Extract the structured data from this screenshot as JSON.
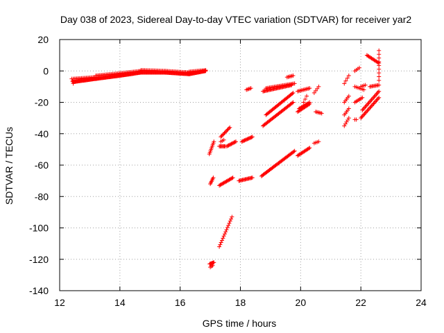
{
  "chart_data": {
    "type": "scatter",
    "title": "Day 038 of 2023, Sidereal Day-to-day VTEC variation (SDTVAR) for receiver yar2",
    "xlabel": "GPS time / hours",
    "ylabel": "SDTVAR / TECUs",
    "xlim": [
      12,
      24
    ],
    "ylim": [
      -140,
      20
    ],
    "xticks": [
      12,
      14,
      16,
      18,
      20,
      22,
      24
    ],
    "yticks": [
      20,
      0,
      -20,
      -40,
      -60,
      -80,
      -100,
      -120,
      -140
    ],
    "grid": true,
    "marker": "+",
    "color": "#ff0000",
    "segments": [
      {
        "x0": 12.4,
        "y0": -5,
        "x1": 12.45,
        "y1": -8,
        "step": 0.02
      },
      {
        "x0": 12.45,
        "y0": -7,
        "x1": 13.2,
        "y1": -5,
        "step": 0.02
      },
      {
        "x0": 12.45,
        "y0": -5,
        "x1": 13.2,
        "y1": -4,
        "step": 0.04
      },
      {
        "x0": 13.2,
        "y0": -5,
        "x1": 14.0,
        "y1": -3,
        "step": 0.02
      },
      {
        "x0": 13.2,
        "y0": -3,
        "x1": 14.0,
        "y1": -1.5,
        "step": 0.04
      },
      {
        "x0": 14.0,
        "y0": -3,
        "x1": 14.7,
        "y1": -1,
        "step": 0.02
      },
      {
        "x0": 14.0,
        "y0": -1.5,
        "x1": 14.7,
        "y1": 0,
        "step": 0.04
      },
      {
        "x0": 14.7,
        "y0": -1,
        "x1": 15.5,
        "y1": -1,
        "step": 0.02
      },
      {
        "x0": 14.7,
        "y0": 0.5,
        "x1": 15.5,
        "y1": 0,
        "step": 0.04
      },
      {
        "x0": 15.5,
        "y0": -1,
        "x1": 16.3,
        "y1": -2,
        "step": 0.02
      },
      {
        "x0": 15.5,
        "y0": 0,
        "x1": 16.3,
        "y1": -1,
        "step": 0.04
      },
      {
        "x0": 16.3,
        "y0": -2,
        "x1": 16.85,
        "y1": 0,
        "step": 0.02
      },
      {
        "x0": 16.3,
        "y0": -0.5,
        "x1": 16.85,
        "y1": 0.5,
        "step": 0.04
      },
      {
        "x0": 16.97,
        "y0": -53,
        "x1": 17.12,
        "y1": -45,
        "step": 0.02
      },
      {
        "x0": 17.0,
        "y0": -72,
        "x1": 17.1,
        "y1": -68,
        "step": 0.02
      },
      {
        "x0": 16.98,
        "y0": -123,
        "x1": 17.12,
        "y1": -122,
        "step": 0.02
      },
      {
        "x0": 17.0,
        "y0": -125,
        "x1": 17.08,
        "y1": -124,
        "step": 0.04
      },
      {
        "x0": 17.3,
        "y0": -112,
        "x1": 17.72,
        "y1": -93,
        "step": 0.03
      },
      {
        "x0": 17.3,
        "y0": -73,
        "x1": 17.75,
        "y1": -68,
        "step": 0.03
      },
      {
        "x0": 17.3,
        "y0": -48,
        "x1": 17.5,
        "y1": -48,
        "step": 0.03
      },
      {
        "x0": 17.55,
        "y0": -48,
        "x1": 17.85,
        "y1": -45,
        "step": 0.03
      },
      {
        "x0": 17.35,
        "y0": -45,
        "x1": 17.45,
        "y1": -44,
        "step": 0.05
      },
      {
        "x0": 17.35,
        "y0": -42,
        "x1": 17.65,
        "y1": -36,
        "step": 0.03
      },
      {
        "x0": 17.95,
        "y0": -70,
        "x1": 18.4,
        "y1": -68,
        "step": 0.03
      },
      {
        "x0": 18.05,
        "y0": -45,
        "x1": 18.4,
        "y1": -42,
        "step": 0.03
      },
      {
        "x0": 18.2,
        "y0": -12,
        "x1": 18.35,
        "y1": -11,
        "step": 0.04
      },
      {
        "x0": 18.7,
        "y0": -67,
        "x1": 19.8,
        "y1": -51,
        "step": 0.03
      },
      {
        "x0": 19.9,
        "y0": -54,
        "x1": 20.3,
        "y1": -49,
        "step": 0.03
      },
      {
        "x0": 20.45,
        "y0": -46,
        "x1": 20.6,
        "y1": -45,
        "step": 0.05
      },
      {
        "x0": 18.75,
        "y0": -35,
        "x1": 19.75,
        "y1": -20,
        "step": 0.03
      },
      {
        "x0": 18.85,
        "y0": -28,
        "x1": 19.75,
        "y1": -14,
        "step": 0.03
      },
      {
        "x0": 18.75,
        "y0": -13,
        "x1": 19.7,
        "y1": -9,
        "step": 0.03
      },
      {
        "x0": 18.85,
        "y0": -11,
        "x1": 19.8,
        "y1": -8,
        "step": 0.04
      },
      {
        "x0": 19.55,
        "y0": -4,
        "x1": 19.75,
        "y1": -3,
        "step": 0.04
      },
      {
        "x0": 19.9,
        "y0": -26,
        "x1": 20.3,
        "y1": -21,
        "step": 0.03
      },
      {
        "x0": 19.95,
        "y0": -24,
        "x1": 20.3,
        "y1": -20,
        "step": 0.04
      },
      {
        "x0": 19.9,
        "y0": -13,
        "x1": 20.3,
        "y1": -11,
        "step": 0.04
      },
      {
        "x0": 20.1,
        "y0": -20,
        "x1": 20.2,
        "y1": -16,
        "step": 0.05
      },
      {
        "x0": 20.5,
        "y0": -26,
        "x1": 20.7,
        "y1": -27,
        "step": 0.04
      },
      {
        "x0": 20.45,
        "y0": -14,
        "x1": 20.6,
        "y1": -10,
        "step": 0.05
      },
      {
        "x0": 21.45,
        "y0": -35,
        "x1": 21.6,
        "y1": -30,
        "step": 0.04
      },
      {
        "x0": 21.45,
        "y0": -28,
        "x1": 21.6,
        "y1": -24,
        "step": 0.04
      },
      {
        "x0": 21.45,
        "y0": -20,
        "x1": 21.6,
        "y1": -16,
        "step": 0.04
      },
      {
        "x0": 21.45,
        "y0": -8,
        "x1": 21.6,
        "y1": -3,
        "step": 0.05
      },
      {
        "x0": 21.8,
        "y0": -31,
        "x1": 21.85,
        "y1": -31,
        "step": 0.05
      },
      {
        "x0": 21.8,
        "y0": -20,
        "x1": 22.05,
        "y1": -17,
        "step": 0.04
      },
      {
        "x0": 21.8,
        "y0": -10,
        "x1": 22.1,
        "y1": -12,
        "step": 0.05
      },
      {
        "x0": 21.8,
        "y0": 0,
        "x1": 21.95,
        "y1": 2,
        "step": 0.05
      },
      {
        "x0": 22.0,
        "y0": -30,
        "x1": 22.6,
        "y1": -17,
        "step": 0.03
      },
      {
        "x0": 22.05,
        "y0": -25,
        "x1": 22.6,
        "y1": -13,
        "step": 0.03
      },
      {
        "x0": 22.0,
        "y0": -10,
        "x1": 22.15,
        "y1": -9,
        "step": 0.05
      },
      {
        "x0": 22.2,
        "y0": 10,
        "x1": 22.6,
        "y1": 5,
        "step": 0.03
      },
      {
        "x0": 22.3,
        "y0": -10,
        "x1": 22.6,
        "y1": -9,
        "step": 0.04
      },
      {
        "x0": 22.6,
        "y0": 13,
        "x1": 22.6,
        "y1": -6,
        "step": 0.5
      }
    ]
  }
}
